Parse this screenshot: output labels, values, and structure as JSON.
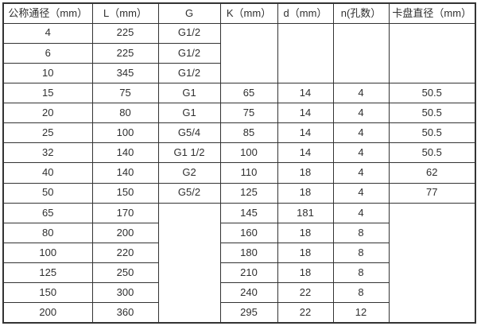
{
  "colors": {
    "border": "#333333",
    "text": "#2f2f2f",
    "background": "#ffffff"
  },
  "table": {
    "headers": [
      "公称通径（mm）",
      "L（mm）",
      "G",
      "K（mm）",
      "d（mm）",
      "n(孔数）",
      "卡盘直径（mm）"
    ],
    "rows": [
      [
        "4",
        "225",
        "G1/2",
        {
          "text": "",
          "rowspan": 3
        },
        {
          "text": "",
          "rowspan": 3
        },
        {
          "text": "",
          "rowspan": 3
        },
        {
          "text": "",
          "rowspan": 3
        }
      ],
      [
        "6",
        "225",
        "G1/2",
        null,
        null,
        null,
        null
      ],
      [
        "10",
        "345",
        "G1/2",
        null,
        null,
        null,
        null
      ],
      [
        "15",
        "75",
        "G1",
        "65",
        "14",
        "4",
        "50.5"
      ],
      [
        "20",
        "80",
        "G1",
        "75",
        "14",
        "4",
        "50.5"
      ],
      [
        "25",
        "100",
        "G5/4",
        "85",
        "14",
        "4",
        "50.5"
      ],
      [
        "32",
        "140",
        "G1 1/2",
        "100",
        "14",
        "4",
        "50.5"
      ],
      [
        "40",
        "140",
        "G2",
        "110",
        "18",
        "4",
        "62"
      ],
      [
        "50",
        "150",
        "G5/2",
        "125",
        "18",
        "4",
        "77"
      ],
      [
        "65",
        "170",
        {
          "text": "",
          "rowspan": 6
        },
        "145",
        "181",
        "4",
        {
          "text": "",
          "rowspan": 6
        }
      ],
      [
        "80",
        "200",
        null,
        "160",
        "18",
        "8",
        null
      ],
      [
        "100",
        "220",
        null,
        "180",
        "18",
        "8",
        null
      ],
      [
        "125",
        "250",
        null,
        "210",
        "18",
        "8",
        null
      ],
      [
        "150",
        "300",
        null,
        "240",
        "22",
        "8",
        null
      ],
      [
        "200",
        "360",
        null,
        "295",
        "22",
        "12",
        null
      ]
    ]
  }
}
